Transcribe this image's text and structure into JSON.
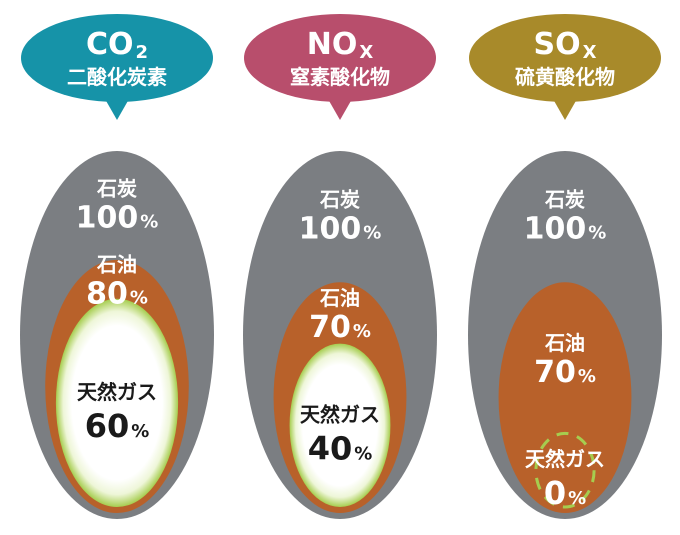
{
  "chart_data": {
    "type": "nested-ellipse",
    "colors": {
      "coal": "#7b7e82",
      "oil": "#b8612a",
      "gas_fill": "#ffffff",
      "gas_ring": "#a6cd4f",
      "text_dark": "#1a1a1a",
      "text_light": "#ffffff"
    },
    "groups": [
      {
        "formula_base": "CO",
        "formula_sub": "2",
        "name": "二酸化炭素",
        "bubble_color": "#1693a8",
        "items": [
          {
            "label": "石炭",
            "value_num": "100",
            "unit": "%",
            "value": 100
          },
          {
            "label": "石油",
            "value_num": "80",
            "unit": "%",
            "value": 80
          },
          {
            "label": "天然ガス",
            "value_num": "60",
            "unit": "%",
            "value": 60
          }
        ]
      },
      {
        "formula_base": "NO",
        "formula_sub": "X",
        "name": "窒素酸化物",
        "bubble_color": "#b84e6c",
        "items": [
          {
            "label": "石炭",
            "value_num": "100",
            "unit": "%",
            "value": 100
          },
          {
            "label": "石油",
            "value_num": "70",
            "unit": "%",
            "value": 70
          },
          {
            "label": "天然ガス",
            "value_num": "40",
            "unit": "%",
            "value": 40
          }
        ]
      },
      {
        "formula_base": "SO",
        "formula_sub": "X",
        "name": "硫黄酸化物",
        "bubble_color": "#a88a2a",
        "items": [
          {
            "label": "石炭",
            "value_num": "100",
            "unit": "%",
            "value": 100
          },
          {
            "label": "石油",
            "value_num": "70",
            "unit": "%",
            "value": 70
          },
          {
            "label": "天然ガス",
            "value_num": "0",
            "unit": "%",
            "value": 0
          }
        ]
      }
    ]
  }
}
